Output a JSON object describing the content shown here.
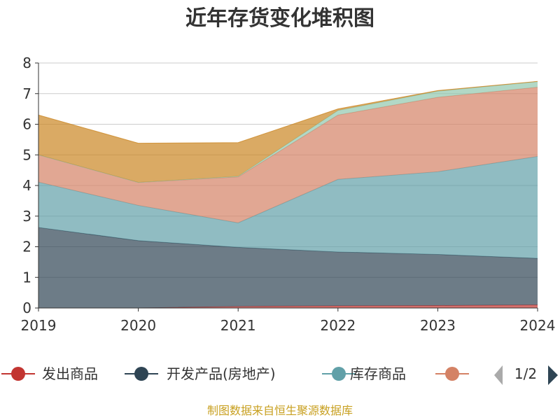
{
  "colors": {
    "series": [
      "#c23531",
      "#2f4554",
      "#61a0a8",
      "#d48265",
      "#91c7ae",
      "#ca8622"
    ],
    "footer": "#c8a020",
    "pager_active": "#2f4554",
    "pager_inactive": "#aaaaaa"
  },
  "chart_data": {
    "type": "area",
    "stacked": true,
    "title": "近年存货变化堆积图",
    "ylabel": "",
    "x": [
      "2019",
      "2020",
      "2021",
      "2022",
      "2023",
      "2024"
    ],
    "ylim": [
      0,
      8
    ],
    "yticks": [
      "0",
      "1",
      "2",
      "3",
      "4",
      "5",
      "6",
      "7",
      "8"
    ],
    "grid": true,
    "legend_position": "bottom",
    "series": [
      {
        "name": "发出商品",
        "values": [
          0.0,
          0.0,
          0.05,
          0.07,
          0.08,
          0.1
        ]
      },
      {
        "name": "开发产品(房地产)",
        "values": [
          2.63,
          2.2,
          1.93,
          1.76,
          1.67,
          1.52
        ]
      },
      {
        "name": "库存商品",
        "values": [
          1.48,
          1.15,
          0.8,
          2.37,
          2.7,
          3.33
        ]
      },
      {
        "name": "",
        "values": [
          0.89,
          0.75,
          1.5,
          2.1,
          2.43,
          2.26
        ]
      },
      {
        "name": "",
        "values": [
          0.0,
          0.0,
          0.02,
          0.15,
          0.2,
          0.18
        ]
      },
      {
        "name": "",
        "values": [
          1.3,
          1.28,
          1.1,
          0.05,
          0.02,
          0.01
        ]
      }
    ]
  },
  "legend": {
    "items": [
      {
        "label": "发出商品"
      },
      {
        "label": "开发产品(房地产)"
      },
      {
        "label": "库存商品"
      },
      {
        "label": ""
      }
    ],
    "page": "1/2"
  },
  "footer": {
    "text": "制图数据来自恒生聚源数据库"
  }
}
